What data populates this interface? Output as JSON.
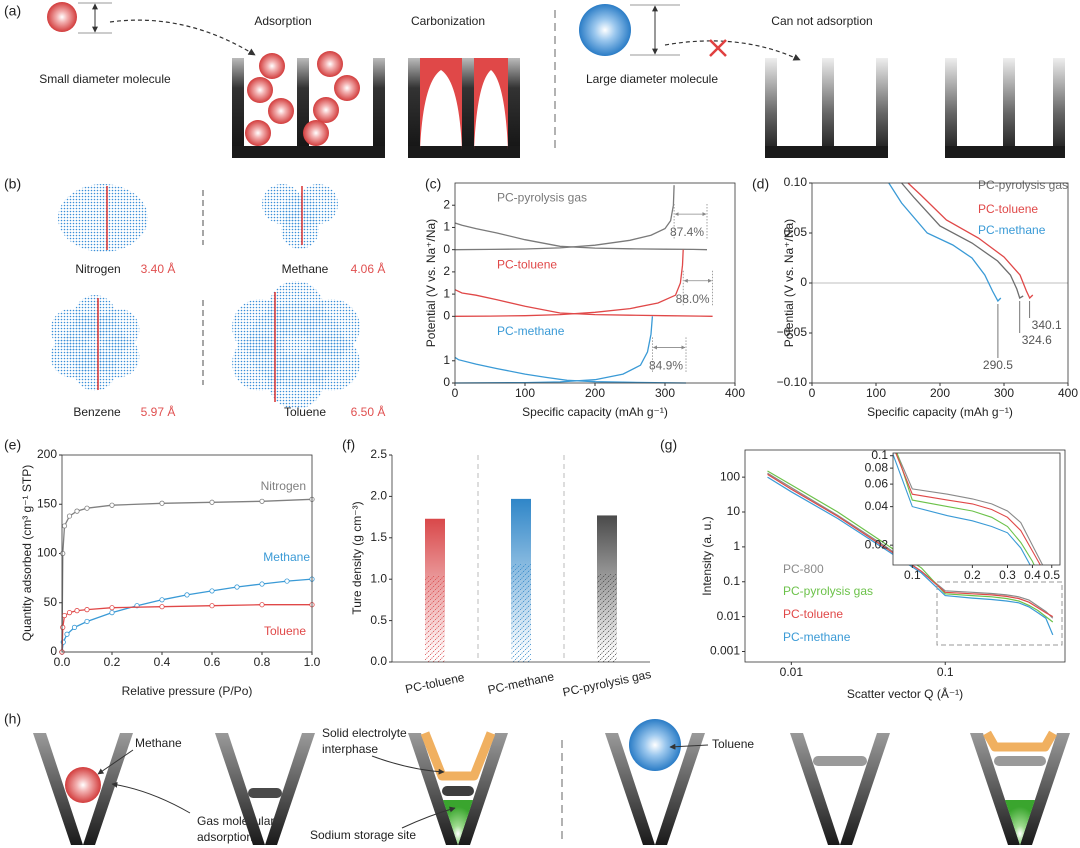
{
  "panel_labels": {
    "a": "(a)",
    "b": "(b)",
    "c": "(c)",
    "d": "(d)",
    "e": "(e)",
    "f": "(f)",
    "g": "(g)",
    "h": "(h)"
  },
  "diagram_a": {
    "small": "Small diameter molecule",
    "adsorption": "Adsorption",
    "carbonization": "Carbonization",
    "large": "Large diameter molecule",
    "cannot": "Can not adsorption"
  },
  "diagram_b": {
    "molecules": [
      {
        "name": "Nitrogen",
        "size": "3.40 Å"
      },
      {
        "name": "Methane",
        "size": "4.06 Å"
      },
      {
        "name": "Benzene",
        "size": "5.97 Å"
      },
      {
        "name": "Toluene",
        "size": "6.50 Å"
      }
    ]
  },
  "diagram_h": {
    "methane": "Methane",
    "gas_adsorption": [
      "Gas molecular",
      "adsorption"
    ],
    "sei": [
      "Solid electrolyte",
      "interphase"
    ],
    "sodium_site": "Sodium storage site",
    "toluene": "Toluene"
  },
  "chart_data": [
    {
      "type": "line",
      "xlabel": "Specific capacity (mAh g⁻¹)",
      "ylabel": "Potential (V vs. Na⁺/Na)",
      "xlim": [
        0,
        400
      ],
      "xticks": [
        0,
        100,
        200,
        300,
        400
      ],
      "subplots": [
        {
          "name": "PC-pyrolysis gas",
          "color": "#7a7a7a",
          "ylim": [
            0,
            3
          ],
          "yticks": [
            0,
            1,
            2
          ],
          "annotation": "87.4%",
          "series": [
            {
              "x": [
                0,
                10,
                30,
                60,
                100,
                150,
                200,
                250,
                300,
                340,
                360
              ],
              "values": [
                1.2,
                1.1,
                0.95,
                0.75,
                0.45,
                0.15,
                0.07,
                0.04,
                0.02,
                0.01,
                0
              ]
            },
            {
              "x": [
                0,
                50,
                100,
                150,
                200,
                250,
                280,
                300,
                308,
                312,
                313
              ],
              "values": [
                0,
                0.01,
                0.03,
                0.08,
                0.2,
                0.42,
                0.65,
                0.95,
                1.3,
                2,
                2.9
              ]
            }
          ]
        },
        {
          "name": "PC-toluene",
          "color": "#e04848",
          "ylim": [
            0,
            3
          ],
          "yticks": [
            0,
            1,
            2
          ],
          "annotation": "88.0%",
          "series": [
            {
              "x": [
                0,
                10,
                30,
                60,
                100,
                150,
                200,
                250,
                300,
                350,
                368
              ],
              "values": [
                1.2,
                1.05,
                0.95,
                0.75,
                0.45,
                0.15,
                0.08,
                0.05,
                0.03,
                0.01,
                0
              ]
            },
            {
              "x": [
                0,
                50,
                100,
                150,
                200,
                250,
                290,
                315,
                322,
                325,
                326
              ],
              "values": [
                0,
                0.01,
                0.03,
                0.08,
                0.18,
                0.35,
                0.6,
                0.95,
                1.5,
                2.3,
                3
              ]
            }
          ]
        },
        {
          "name": "PC-methane",
          "color": "#3a9ad6",
          "ylim": [
            0,
            3
          ],
          "yticks": [
            0,
            1
          ],
          "annotation": "84.9%",
          "series": [
            {
              "x": [
                0,
                5,
                30,
                60,
                100,
                130,
                160,
                200,
                250,
                300,
                330
              ],
              "values": [
                1.15,
                1.05,
                0.85,
                0.65,
                0.4,
                0.25,
                0.12,
                0.06,
                0.03,
                0.01,
                0
              ]
            },
            {
              "x": [
                0,
                50,
                100,
                150,
                200,
                240,
                265,
                275,
                280,
                282
              ],
              "values": [
                0,
                0.01,
                0.02,
                0.05,
                0.15,
                0.4,
                0.8,
                1.4,
                2.2,
                3
              ]
            }
          ]
        }
      ]
    },
    {
      "type": "line",
      "xlabel": "Specific capacity (mAh g⁻¹)",
      "ylabel": "Potential (V vs. Na⁺/Na)",
      "xlim": [
        0,
        400
      ],
      "xticks": [
        0,
        100,
        200,
        300,
        400
      ],
      "ylim": [
        -0.1,
        0.1
      ],
      "yticks": [
        {
          "value": 0.1,
          "label": "0.10"
        },
        0.05,
        0,
        {
          "value": -0.05,
          "label": "−0.05"
        },
        {
          "value": -0.1,
          "label": "−0.10"
        }
      ],
      "legend": "upper right",
      "series": [
        {
          "name": "PC-pyrolysis gas",
          "color": "#6e6e6e",
          "x": [
            140,
            160,
            200,
            250,
            290,
            310,
            320,
            324.6,
            330
          ],
          "values": [
            0.1,
            0.085,
            0.057,
            0.04,
            0.022,
            0.008,
            -0.006,
            -0.015,
            -0.013
          ],
          "end_capacity": 324.6
        },
        {
          "name": "PC-toluene",
          "color": "#e04848",
          "x": [
            150,
            170,
            210,
            260,
            300,
            325,
            335,
            340.1,
            345
          ],
          "values": [
            0.1,
            0.088,
            0.063,
            0.045,
            0.026,
            0.008,
            -0.008,
            -0.015,
            -0.012
          ],
          "end_capacity": 340.1
        },
        {
          "name": "PC-methane",
          "color": "#3a9ad6",
          "x": [
            120,
            140,
            180,
            220,
            250,
            270,
            282,
            290.5,
            295
          ],
          "values": [
            0.1,
            0.08,
            0.05,
            0.038,
            0.025,
            0.008,
            -0.008,
            -0.018,
            -0.015
          ],
          "end_capacity": 290.5
        }
      ]
    },
    {
      "type": "line",
      "xlabel": "Relative pressure (P/Po)",
      "ylabel": "Quantity adsorbed (cm³ g⁻¹ STP)",
      "markers": true,
      "xlim": [
        0,
        1
      ],
      "xticks": [
        {
          "value": 0,
          "label": "0.0"
        },
        0.2,
        0.4,
        0.6,
        0.8,
        {
          "value": 1,
          "label": "1.0"
        }
      ],
      "ylim": [
        0,
        200
      ],
      "yticks": [
        0,
        50,
        100,
        150,
        200
      ],
      "series": [
        {
          "name": "Nitrogen",
          "color": "#808080",
          "x": [
            0,
            0.003,
            0.01,
            0.03,
            0.06,
            0.1,
            0.2,
            0.4,
            0.6,
            0.8,
            1
          ],
          "values": [
            0,
            100,
            128,
            138,
            143,
            146,
            149,
            151,
            152,
            153,
            155
          ]
        },
        {
          "name": "Methane",
          "color": "#3a9ad6",
          "x": [
            0,
            0.005,
            0.02,
            0.05,
            0.1,
            0.2,
            0.3,
            0.4,
            0.5,
            0.6,
            0.7,
            0.8,
            0.9,
            1
          ],
          "values": [
            0,
            10,
            18,
            25,
            31,
            40,
            47,
            53,
            58,
            62,
            66,
            69,
            72,
            74
          ]
        },
        {
          "name": "Toluene",
          "color": "#e04848",
          "x": [
            0,
            0.003,
            0.01,
            0.03,
            0.06,
            0.1,
            0.2,
            0.4,
            0.6,
            0.8,
            1
          ],
          "values": [
            0,
            25,
            37,
            40,
            42,
            43,
            45,
            46,
            47,
            48,
            48
          ]
        }
      ]
    },
    {
      "type": "bar",
      "ylabel": "Ture density (g cm⁻³)",
      "categories": [
        "PC-toluene",
        "PC-methane",
        "PC-pyrolysis gas"
      ],
      "values": [
        1.73,
        1.97,
        1.77
      ],
      "colors": [
        "#d9484a",
        "#2f86c8",
        "#4a4a4a"
      ],
      "ylim": [
        0,
        2.5
      ],
      "yticks": [
        {
          "value": 0,
          "label": "0.0"
        },
        0.5,
        {
          "value": 1,
          "label": "1.0"
        },
        1.5,
        {
          "value": 2,
          "label": "2.0"
        },
        2.5
      ]
    },
    {
      "type": "line",
      "xlabel": "Scatter vector Q (Å⁻¹)",
      "ylabel": "Intensity (a. u.)",
      "xlog": true,
      "ylog": true,
      "xlim": [
        0.005,
        0.6
      ],
      "xticks": [
        0.01,
        0.1
      ],
      "ylim": [
        0.0005,
        600
      ],
      "yticks": [
        0.001,
        0.01,
        0.1,
        1,
        10,
        100
      ],
      "x": [
        0.007,
        0.01,
        0.02,
        0.04,
        0.07,
        0.1,
        0.15,
        0.2,
        0.25,
        0.3,
        0.35,
        0.4,
        0.45,
        0.5
      ],
      "series": [
        {
          "name": "PC-800",
          "color": "#8a8a8a",
          "values": [
            130,
            50,
            8,
            1.1,
            0.2,
            0.055,
            0.05,
            0.046,
            0.042,
            0.037,
            0.03,
            0.02,
            0.014,
            0.009
          ]
        },
        {
          "name": "PC-pyrolysis gas",
          "color": "#6cc24a",
          "values": [
            150,
            60,
            10,
            1.3,
            0.25,
            0.045,
            0.04,
            0.037,
            0.033,
            0.028,
            0.021,
            0.015,
            0.01,
            0.007
          ]
        },
        {
          "name": "PC-toluene",
          "color": "#e04848",
          "values": [
            120,
            45,
            7.5,
            1,
            0.2,
            0.05,
            0.045,
            0.042,
            0.038,
            0.033,
            0.026,
            0.018,
            0.013,
            0.01
          ]
        },
        {
          "name": "PC-methane",
          "color": "#3a9ad6",
          "values": [
            100,
            38,
            6.5,
            0.9,
            0.18,
            0.04,
            0.034,
            0.031,
            0.028,
            0.025,
            0.019,
            0.013,
            0.009,
            0.003
          ]
        }
      ],
      "inset": {
        "xlog": true,
        "ylog": true,
        "xlim": [
          0.08,
          0.55
        ],
        "xticks": [
          0.1,
          0.2,
          0.3,
          0.4,
          0.5
        ],
        "ylim": [
          0.014,
          0.105
        ],
        "yticks": [
          0.02,
          0.04,
          0.06,
          0.08,
          0.1
        ]
      }
    }
  ]
}
